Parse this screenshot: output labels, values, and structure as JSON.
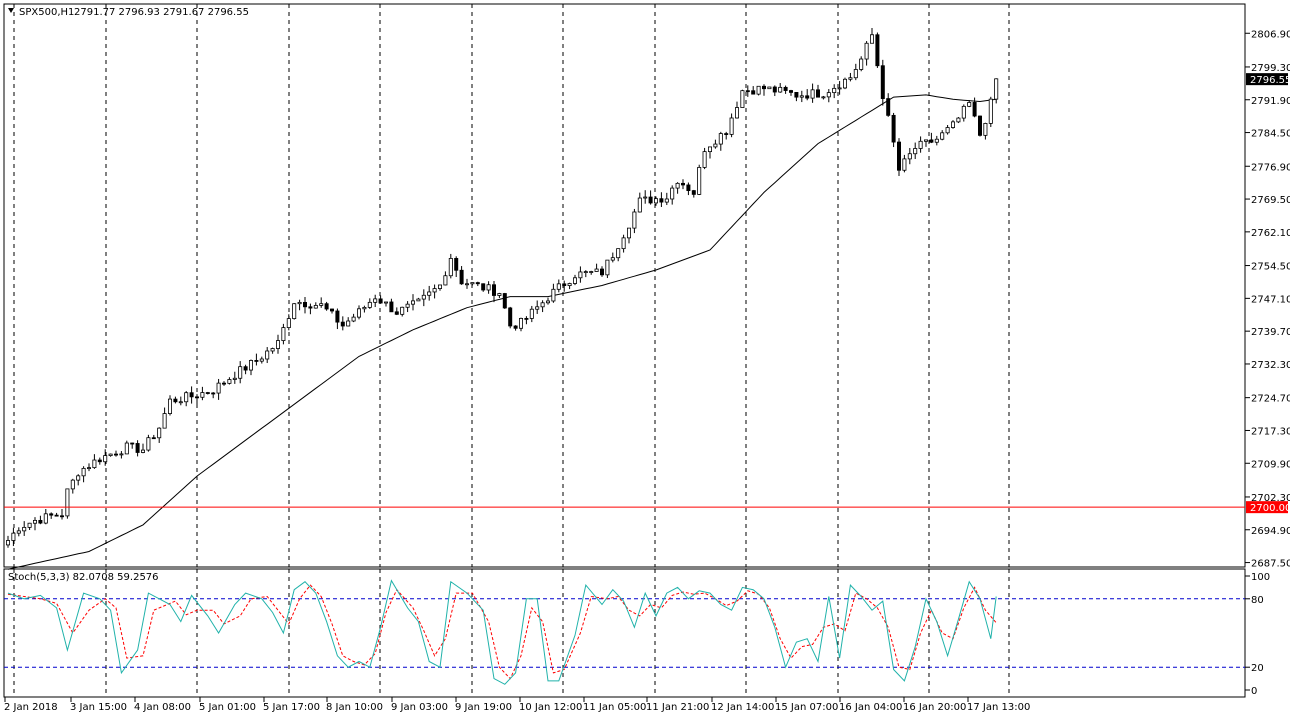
{
  "chart_data": [
    {
      "type": "candlestick",
      "symbol_label": "SPX500,H1",
      "ohlc_label": "2791.77 2796.93 2791.67 2796.55",
      "price_ticks": [
        "2806.90",
        "2799.30",
        "2791.90",
        "2784.50",
        "2776.90",
        "2769.50",
        "2762.10",
        "2754.50",
        "2747.10",
        "2739.70",
        "2732.30",
        "2724.70",
        "2717.30",
        "2709.90",
        "2702.30",
        "2694.90",
        "2687.50"
      ],
      "ylim": [
        2686.5,
        2813.5
      ],
      "time_labels": [
        "2 Jan 2018",
        "3 Jan 15:00",
        "4 Jan 08:00",
        "5 Jan 01:00",
        "5 Jan 17:00",
        "8 Jan 10:00",
        "9 Jan 03:00",
        "9 Jan 19:00",
        "10 Jan 12:00",
        "11 Jan 05:00",
        "11 Jan 21:00",
        "12 Jan 14:00",
        "15 Jan 07:00",
        "16 Jan 04:00",
        "16 Jan 20:00",
        "17 Jan 13:00"
      ],
      "current_price": {
        "label": "2796.55",
        "value": 2796.55
      },
      "horizontal_line": {
        "label": "2700.00",
        "value": 2700.0,
        "color": "#ff0000"
      },
      "key_points": [
        [
          0,
          2692.5
        ],
        [
          2,
          2695.5
        ],
        [
          5,
          2697.0
        ],
        [
          8,
          2698.0
        ],
        [
          10,
          2698.5
        ],
        [
          11,
          2703.5
        ],
        [
          13,
          2708.0
        ],
        [
          17,
          2711.0
        ],
        [
          22,
          2713.5
        ],
        [
          25,
          2713.0
        ],
        [
          28,
          2718.0
        ],
        [
          30,
          2724.0
        ],
        [
          34,
          2725.0
        ],
        [
          38,
          2726.5
        ],
        [
          42,
          2730.0
        ],
        [
          46,
          2733.0
        ],
        [
          50,
          2737.0
        ],
        [
          53,
          2746.5
        ],
        [
          58,
          2745.5
        ],
        [
          62,
          2741.0
        ],
        [
          65,
          2744.0
        ],
        [
          68,
          2747.5
        ],
        [
          72,
          2744.0
        ],
        [
          76,
          2746.0
        ],
        [
          80,
          2750.0
        ],
        [
          82,
          2756.5
        ],
        [
          84,
          2751.0
        ],
        [
          88,
          2749.5
        ],
        [
          91,
          2748.5
        ],
        [
          93,
          2741.0
        ],
        [
          95,
          2741.5
        ],
        [
          98,
          2745.0
        ],
        [
          101,
          2748.5
        ],
        [
          105,
          2752.5
        ],
        [
          110,
          2753.0
        ],
        [
          112,
          2757.0
        ],
        [
          115,
          2764.0
        ],
        [
          117,
          2769.0
        ],
        [
          122,
          2770.0
        ],
        [
          124,
          2774.0
        ],
        [
          127,
          2771.0
        ],
        [
          129,
          2781.0
        ],
        [
          133,
          2785.0
        ],
        [
          136,
          2794.0
        ],
        [
          140,
          2794.5
        ],
        [
          146,
          2793.0
        ],
        [
          151,
          2793.5
        ],
        [
          156,
          2797.0
        ],
        [
          158,
          2801.0
        ],
        [
          160,
          2806.5
        ],
        [
          162,
          2793.0
        ],
        [
          164,
          2782.0
        ],
        [
          165,
          2776.0
        ],
        [
          168,
          2781.0
        ],
        [
          172,
          2783.0
        ],
        [
          175,
          2786.0
        ],
        [
          178,
          2791.0
        ],
        [
          180,
          2784.0
        ],
        [
          182,
          2791.0
        ],
        [
          183,
          2796.5
        ]
      ],
      "ma_points": [
        [
          0,
          2686.0
        ],
        [
          15,
          2690.0
        ],
        [
          25,
          2696.0
        ],
        [
          35,
          2707.0
        ],
        [
          45,
          2716.0
        ],
        [
          55,
          2725.0
        ],
        [
          65,
          2734.0
        ],
        [
          75,
          2740.0
        ],
        [
          85,
          2745.0
        ],
        [
          93,
          2747.5
        ],
        [
          100,
          2747.5
        ],
        [
          110,
          2750.0
        ],
        [
          120,
          2753.5
        ],
        [
          130,
          2758.0
        ],
        [
          140,
          2771.0
        ],
        [
          150,
          2782.0
        ],
        [
          158,
          2788.0
        ],
        [
          164,
          2792.5
        ],
        [
          170,
          2793.0
        ],
        [
          175,
          2792.0
        ],
        [
          180,
          2791.5
        ],
        [
          183,
          2792.0
        ]
      ],
      "colors": {
        "bull_fill": "#ffffff",
        "bear_fill": "#000000",
        "up_outline": "#000000",
        "ma_line": "#000000"
      }
    },
    {
      "type": "line",
      "label": "Stoch(5,3,3) 82.0708 59.2576",
      "y_ticks": [
        "100",
        "80",
        "20",
        "0"
      ],
      "levels": [
        80,
        20
      ],
      "ylim": [
        0,
        100
      ],
      "main_points": [
        [
          0,
          85
        ],
        [
          3,
          80
        ],
        [
          6,
          83
        ],
        [
          9,
          72
        ],
        [
          11,
          35
        ],
        [
          14,
          85
        ],
        [
          17,
          80
        ],
        [
          19,
          70
        ],
        [
          21,
          15
        ],
        [
          24,
          35
        ],
        [
          26,
          85
        ],
        [
          30,
          75
        ],
        [
          32,
          60
        ],
        [
          34,
          83
        ],
        [
          37,
          65
        ],
        [
          39,
          50
        ],
        [
          42,
          75
        ],
        [
          44,
          85
        ],
        [
          47,
          80
        ],
        [
          49,
          68
        ],
        [
          51,
          50
        ],
        [
          53,
          88
        ],
        [
          55,
          95
        ],
        [
          57,
          85
        ],
        [
          59,
          60
        ],
        [
          61,
          30
        ],
        [
          63,
          20
        ],
        [
          65,
          25
        ],
        [
          67,
          20
        ],
        [
          69,
          55
        ],
        [
          71,
          96
        ],
        [
          74,
          72
        ],
        [
          76,
          60
        ],
        [
          78,
          25
        ],
        [
          80,
          20
        ],
        [
          82,
          95
        ],
        [
          85,
          85
        ],
        [
          88,
          70
        ],
        [
          90,
          10
        ],
        [
          92,
          5
        ],
        [
          94,
          15
        ],
        [
          96,
          80
        ],
        [
          98,
          80
        ],
        [
          100,
          8
        ],
        [
          102,
          8
        ],
        [
          105,
          48
        ],
        [
          107,
          92
        ],
        [
          110,
          75
        ],
        [
          112,
          88
        ],
        [
          114,
          78
        ],
        [
          116,
          55
        ],
        [
          118,
          85
        ],
        [
          120,
          65
        ],
        [
          122,
          85
        ],
        [
          124,
          90
        ],
        [
          126,
          80
        ],
        [
          128,
          87
        ],
        [
          130,
          85
        ],
        [
          132,
          75
        ],
        [
          134,
          70
        ],
        [
          136,
          90
        ],
        [
          138,
          88
        ],
        [
          140,
          80
        ],
        [
          142,
          55
        ],
        [
          144,
          20
        ],
        [
          146,
          42
        ],
        [
          148,
          45
        ],
        [
          150,
          25
        ],
        [
          152,
          82
        ],
        [
          154,
          28
        ],
        [
          156,
          92
        ],
        [
          158,
          82
        ],
        [
          160,
          70
        ],
        [
          162,
          78
        ],
        [
          164,
          18
        ],
        [
          166,
          8
        ],
        [
          168,
          38
        ],
        [
          170,
          80
        ],
        [
          172,
          60
        ],
        [
          174,
          30
        ],
        [
          176,
          62
        ],
        [
          178,
          95
        ],
        [
          180,
          80
        ],
        [
          182,
          45
        ],
        [
          183,
          82
        ]
      ],
      "signal_points": [
        [
          0,
          84
        ],
        [
          3,
          82
        ],
        [
          6,
          80
        ],
        [
          9,
          76
        ],
        [
          12,
          50
        ],
        [
          15,
          70
        ],
        [
          18,
          80
        ],
        [
          20,
          72
        ],
        [
          22,
          28
        ],
        [
          25,
          30
        ],
        [
          27,
          70
        ],
        [
          31,
          78
        ],
        [
          33,
          66
        ],
        [
          35,
          70
        ],
        [
          38,
          70
        ],
        [
          40,
          58
        ],
        [
          43,
          65
        ],
        [
          45,
          80
        ],
        [
          48,
          82
        ],
        [
          50,
          70
        ],
        [
          52,
          58
        ],
        [
          54,
          80
        ],
        [
          56,
          92
        ],
        [
          58,
          82
        ],
        [
          60,
          58
        ],
        [
          62,
          30
        ],
        [
          64,
          25
        ],
        [
          66,
          22
        ],
        [
          68,
          32
        ],
        [
          70,
          68
        ],
        [
          72,
          88
        ],
        [
          75,
          72
        ],
        [
          77,
          52
        ],
        [
          79,
          30
        ],
        [
          81,
          45
        ],
        [
          83,
          85
        ],
        [
          86,
          85
        ],
        [
          89,
          60
        ],
        [
          91,
          20
        ],
        [
          93,
          10
        ],
        [
          95,
          30
        ],
        [
          97,
          72
        ],
        [
          99,
          60
        ],
        [
          101,
          15
        ],
        [
          103,
          18
        ],
        [
          106,
          50
        ],
        [
          108,
          82
        ],
        [
          111,
          80
        ],
        [
          113,
          82
        ],
        [
          115,
          70
        ],
        [
          117,
          65
        ],
        [
          119,
          75
        ],
        [
          121,
          72
        ],
        [
          123,
          83
        ],
        [
          125,
          86
        ],
        [
          127,
          84
        ],
        [
          129,
          85
        ],
        [
          131,
          80
        ],
        [
          133,
          74
        ],
        [
          135,
          78
        ],
        [
          137,
          87
        ],
        [
          139,
          84
        ],
        [
          141,
          72
        ],
        [
          143,
          45
        ],
        [
          145,
          28
        ],
        [
          147,
          38
        ],
        [
          149,
          40
        ],
        [
          151,
          55
        ],
        [
          153,
          58
        ],
        [
          155,
          52
        ],
        [
          157,
          85
        ],
        [
          159,
          80
        ],
        [
          161,
          72
        ],
        [
          163,
          55
        ],
        [
          165,
          20
        ],
        [
          167,
          18
        ],
        [
          169,
          50
        ],
        [
          171,
          70
        ],
        [
          173,
          50
        ],
        [
          175,
          45
        ],
        [
          177,
          72
        ],
        [
          179,
          90
        ],
        [
          181,
          70
        ],
        [
          183,
          59
        ]
      ],
      "colors": {
        "main": "#20b2aa",
        "signal": "#ff0000",
        "level": "#0000cd"
      }
    }
  ]
}
